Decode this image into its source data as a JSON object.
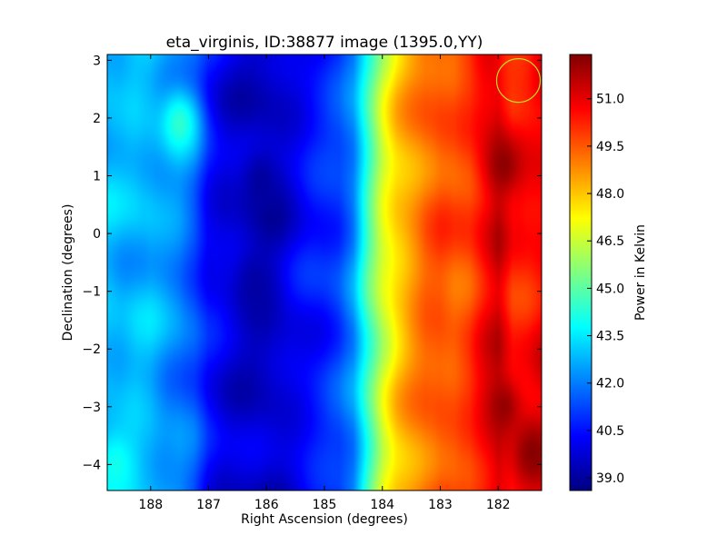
{
  "chart_data": {
    "type": "heatmap",
    "title": "eta_virginis, ID:38877 image (1395.0,YY)",
    "xlabel": "Right Ascension (degrees)",
    "ylabel": "Declination (degrees)",
    "colorbar_label": "Power in Kelvin",
    "colormap": "jet",
    "x_axis_inverted": true,
    "xlim": [
      188.75,
      181.25
    ],
    "ylim": [
      -4.45,
      3.1
    ],
    "xticks": [
      188,
      187,
      186,
      185,
      184,
      183,
      182
    ],
    "xtick_labels": [
      "188",
      "187",
      "186",
      "185",
      "184",
      "183",
      "182"
    ],
    "yticks": [
      3,
      2,
      1,
      0,
      -1,
      -2,
      -3,
      -4
    ],
    "ytick_labels": [
      "3",
      "2",
      "1",
      "0",
      "−1",
      "−2",
      "−3",
      "−4"
    ],
    "colorbar_range": [
      38.6,
      52.4
    ],
    "colorbar_ticks": [
      39.0,
      40.5,
      42.0,
      43.5,
      45.0,
      46.5,
      48.0,
      49.5,
      51.0
    ],
    "colorbar_tick_labels": [
      "39.0",
      "40.5",
      "42.0",
      "43.5",
      "45.0",
      "46.5",
      "48.0",
      "49.5",
      "51.0"
    ],
    "ra_profile": {
      "ra": [
        188.75,
        188.5,
        188.25,
        188.0,
        187.75,
        187.5,
        187.25,
        187.0,
        186.75,
        186.5,
        186.25,
        186.0,
        185.75,
        185.5,
        185.25,
        185.0,
        184.75,
        184.5,
        184.25,
        184.0,
        183.75,
        183.5,
        183.25,
        183.0,
        182.75,
        182.5,
        182.25,
        182.0,
        181.75,
        181.5,
        181.25
      ],
      "power": [
        42.9,
        42.8,
        42.9,
        42.8,
        42.4,
        42.1,
        41.5,
        40.4,
        40.0,
        39.8,
        39.6,
        39.5,
        39.7,
        40.1,
        40.5,
        40.8,
        41.2,
        42.2,
        44.6,
        46.6,
        47.8,
        48.6,
        49.3,
        49.6,
        49.5,
        49.8,
        50.6,
        51.3,
        50.2,
        50.4,
        50.8
      ]
    },
    "features": [
      {
        "ra": 187.5,
        "dec": 1.9,
        "power": 44.4
      },
      {
        "ra": 186.1,
        "dec": 0.9,
        "power": 39.0
      },
      {
        "ra": 186.2,
        "dec": -0.9,
        "power": 39.1
      },
      {
        "ra": 188.6,
        "dec": -4.0,
        "power": 44.0
      },
      {
        "ra": 181.9,
        "dec": 1.2,
        "power": 52.2
      },
      {
        "ra": 181.9,
        "dec": -3.0,
        "power": 52.1
      },
      {
        "ra": 181.4,
        "dec": -3.8,
        "power": 52.3
      },
      {
        "ra": 181.7,
        "dec": 3.0,
        "power": 50.0
      }
    ],
    "marker": {
      "shape": "circle",
      "ra": 181.65,
      "dec": 2.65,
      "color": "#c8e020"
    }
  }
}
